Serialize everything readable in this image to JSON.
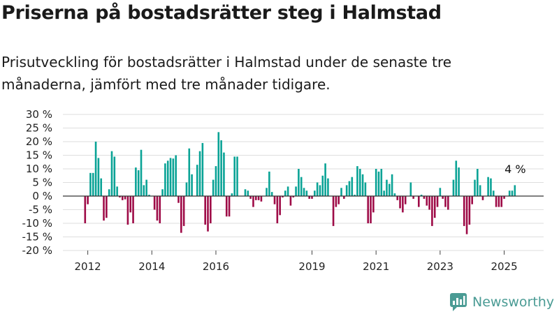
{
  "header": {
    "title": "Priserna på bostadsrätter steg i Halmstad",
    "subtitle": "Prisutveckling för bostadsrätter i Halmstad under de senaste tre månaderna, jämfört med tre månader tidigare."
  },
  "brand": {
    "name": "Newsworthy",
    "logo_icon": "bar-chart-speech-bubble-icon",
    "color": "#4a9b94"
  },
  "colors": {
    "positive": "#0aa396",
    "negative": "#9e0b47",
    "grid": "#dedede",
    "zero_line": "#333333"
  },
  "chart_data": {
    "type": "bar",
    "title": "",
    "xlabel": "",
    "ylabel": "",
    "ylim": [
      -20,
      30
    ],
    "y_ticks": [
      30,
      25,
      20,
      15,
      10,
      5,
      0,
      -5,
      -10,
      -15,
      -20
    ],
    "y_tick_labels": [
      "30 %",
      "25 %",
      "20 %",
      "15 %",
      "10 %",
      "5 %",
      "0 %",
      "-5 %",
      "-10 %",
      "-15 %",
      "-20 %"
    ],
    "x_tick_labels": [
      {
        "label": "2012",
        "index": 1
      },
      {
        "label": "2014",
        "index": 25
      },
      {
        "label": "2016",
        "index": 49
      },
      {
        "label": "2019",
        "index": 85
      },
      {
        "label": "2021",
        "index": 109
      },
      {
        "label": "2023",
        "index": 133
      },
      {
        "label": "2025",
        "index": 157
      }
    ],
    "grid": true,
    "annotation": {
      "text": "4 %",
      "index": 162
    },
    "values": [
      -10,
      -3,
      8.5,
      8.5,
      20,
      14,
      6.5,
      -9,
      -8,
      2.5,
      16.5,
      14.5,
      3.5,
      -0.5,
      -1.5,
      -1.2,
      -10.5,
      -6,
      -10,
      10.5,
      9.5,
      17,
      4,
      6,
      0.5,
      0,
      -5,
      -9,
      -10,
      2.5,
      12,
      13,
      14,
      13.8,
      15,
      -2.5,
      -13.5,
      -11,
      5,
      17.5,
      8,
      0,
      11.5,
      16.5,
      19.5,
      -10.5,
      -13,
      -10,
      6,
      11,
      23.5,
      20.5,
      16,
      -7.5,
      -7.5,
      1,
      14.5,
      14.5,
      0,
      0,
      2.5,
      2,
      -1,
      -4,
      -1.5,
      -1.5,
      -2,
      0,
      3,
      9,
      1.5,
      -3,
      -10,
      -7,
      -0.5,
      2,
      3.5,
      -3.5,
      -0.5,
      3.5,
      10,
      7,
      3,
      2,
      -1,
      -1,
      2,
      5,
      4,
      7.5,
      12,
      6.5,
      0,
      -11,
      -4,
      -3,
      3,
      -1,
      4,
      5.5,
      7,
      0.5,
      11,
      10,
      8,
      5,
      -10,
      -10,
      -6,
      10,
      9,
      10,
      2,
      6,
      4.5,
      8,
      1,
      -1.5,
      -4.5,
      -6,
      -3,
      0,
      5,
      -1,
      0,
      -4,
      0.5,
      -1,
      -3.5,
      -5,
      -11,
      -8,
      -4,
      3,
      -1,
      -4,
      -5,
      0,
      6,
      13,
      10.5,
      0,
      -11,
      -14,
      -10.5,
      -3,
      6,
      10,
      4,
      -1.5,
      0,
      7,
      6.5,
      2,
      -4,
      -4,
      -4,
      -1,
      0,
      2,
      2,
      4
    ]
  }
}
